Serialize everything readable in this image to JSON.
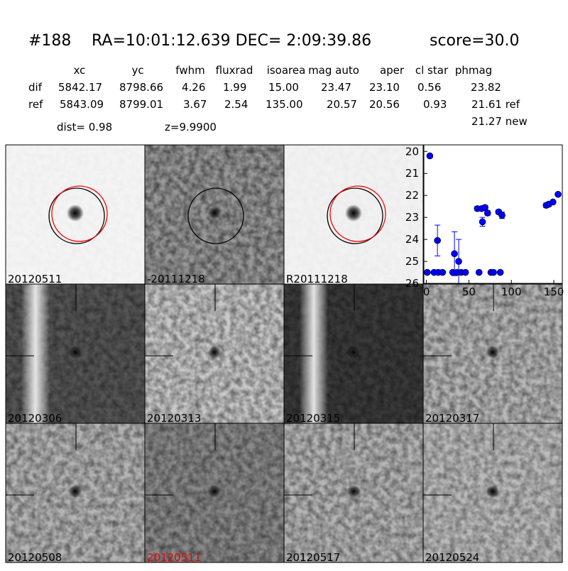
{
  "header": {
    "id": "#188",
    "coords": "RA=10:01:12.639 DEC= 2:09:39.86",
    "score": "score=30.0"
  },
  "table": {
    "columns": [
      "xc",
      "yc",
      "fwhm",
      "fluxrad",
      "isoarea",
      "mag auto",
      "aper",
      "cl star",
      "phmag"
    ],
    "rows": [
      [
        "dif",
        "5842.17",
        "8798.66",
        "4.26",
        "1.99",
        "15.00",
        "23.47",
        "23.10",
        "0.56",
        "23.82"
      ],
      [
        "ref",
        "5843.09",
        "8799.01",
        "3.67",
        "2.54",
        "135.00",
        "20.57",
        "20.56",
        "0.93",
        "21.61 ref"
      ]
    ],
    "extra": "21.27 new"
  },
  "dist": "dist=  0.98",
  "z": "z=9.9900",
  "panels": [
    "20120511",
    "-20111218",
    "R20111218",
    "20120306",
    "20120313",
    "20120315",
    "20120317",
    "20120508",
    "20120511",
    "20120517",
    "20120524"
  ],
  "chart_data": {
    "type": "scatter",
    "color": "#0000ff",
    "y_inverted": true,
    "xlim": [
      -3,
      160
    ],
    "ylim": [
      19.7,
      26
    ],
    "xticks": [
      0,
      50,
      100,
      150
    ],
    "yticks": [
      20,
      21,
      22,
      23,
      24,
      25,
      26
    ],
    "x": [
      4,
      1,
      9,
      14,
      19,
      13,
      31,
      33,
      36,
      38,
      41,
      46,
      60,
      62,
      65,
      66,
      69,
      72,
      76,
      79,
      85,
      87,
      89,
      141,
      144,
      149,
      155
    ],
    "values": [
      20.2,
      25.5,
      25.5,
      25.5,
      25.5,
      24.05,
      25.5,
      24.65,
      25.5,
      25.0,
      25.5,
      25.5,
      22.6,
      25.5,
      22.6,
      23.2,
      22.55,
      22.8,
      25.5,
      25.5,
      22.75,
      25.5,
      22.9,
      22.45,
      22.4,
      22.3,
      21.95
    ],
    "errors": [
      0,
      0,
      0,
      0,
      0,
      0.7,
      0,
      1.0,
      0,
      1.0,
      0,
      0,
      0.1,
      0,
      0.1,
      0.2,
      0.1,
      0.1,
      0,
      0,
      0.1,
      0,
      0.15,
      0.1,
      0.1,
      0.05,
      0.05
    ]
  }
}
